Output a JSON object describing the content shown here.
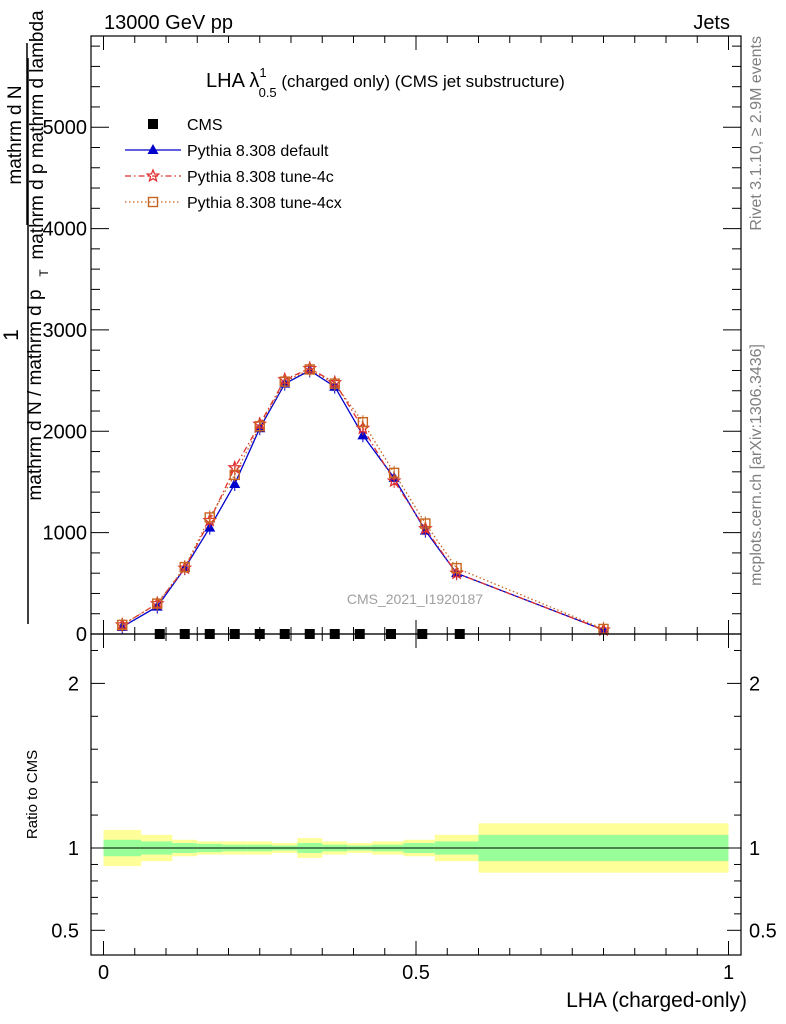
{
  "header": {
    "left": "13000 GeV pp",
    "right": "Jets"
  },
  "side_labels": {
    "rivet": "Rivet 3.1.10, ≥ 2.9M events",
    "mcplots": "mcplots.cern.ch [arXiv:1306.3436]"
  },
  "chart_data": [
    {
      "type": "line",
      "panel": "main",
      "title": {
        "prefix": "LHA λ",
        "superscript": "1",
        "subscript": "0.5",
        "suffix": " (charged only) (CMS jet substructure)"
      },
      "ylabel_lines": [
        "1",
        "mathrm d N / mathrm d p",
        "mathrm d N",
        "mathrm d p",
        "mathrm d lambda"
      ],
      "ylabel_sub": "T",
      "ylim": [
        0,
        5900
      ],
      "xlim": [
        -0.02,
        1.02
      ],
      "yticks": [
        0,
        1000,
        2000,
        3000,
        4000,
        5000
      ],
      "ytick_labels": [
        "0",
        "1000",
        "2000",
        "3000",
        "4000",
        "5000"
      ],
      "watermark": "CMS_2021_I1920187",
      "legend": {
        "placement": "top-left",
        "entries": [
          "CMS",
          "Pythia 8.308 default",
          "Pythia 8.308 tune-4c",
          "Pythia 8.308 tune-4cx"
        ]
      },
      "x": [
        0.03,
        0.086,
        0.13,
        0.17,
        0.21,
        0.25,
        0.29,
        0.33,
        0.37,
        0.415,
        0.465,
        0.515,
        0.565,
        0.8
      ],
      "series": [
        {
          "name": "CMS",
          "color": "#000000",
          "marker": "square",
          "x": [
            0.09,
            0.13,
            0.17,
            0.21,
            0.25,
            0.29,
            0.33,
            0.37,
            0.41,
            0.46,
            0.51,
            0.57
          ],
          "values": [
            0,
            0,
            0,
            0,
            0,
            0,
            0,
            0,
            0,
            0,
            0,
            0
          ]
        },
        {
          "name": "Pythia 8.308 default",
          "color": "#0000cc",
          "marker": "triangle",
          "line": "solid",
          "values": [
            70,
            270,
            650,
            1050,
            1480,
            2030,
            2470,
            2600,
            2440,
            1960,
            1540,
            1020,
            600,
            40
          ]
        },
        {
          "name": "Pythia 8.308 tune-4c",
          "color": "#e03030",
          "marker": "star",
          "line": "dashdot",
          "values": [
            90,
            300,
            650,
            1120,
            1640,
            2070,
            2510,
            2620,
            2480,
            2030,
            1510,
            1040,
            600,
            40
          ]
        },
        {
          "name": "Pythia 8.308 tune-4cx",
          "color": "#c86420",
          "marker": "open-square",
          "line": "dotted",
          "values": [
            90,
            300,
            660,
            1150,
            1570,
            2050,
            2490,
            2610,
            2470,
            2090,
            1590,
            1090,
            650,
            50
          ]
        }
      ]
    },
    {
      "type": "area",
      "panel": "ratio",
      "ylabel": "Ratio to CMS",
      "ylim": [
        0.35,
        2.3
      ],
      "yticks": [
        0.5,
        1,
        2
      ],
      "ytick_labels": [
        "0.5",
        "1",
        "2"
      ],
      "xlabel": "LHA (charged-only)",
      "xticks": [
        0,
        0.5,
        1
      ],
      "xtick_labels": [
        "0",
        "0.5",
        "1"
      ],
      "bin_edges": [
        0,
        0.06,
        0.11,
        0.15,
        0.19,
        0.23,
        0.27,
        0.31,
        0.35,
        0.39,
        0.43,
        0.48,
        0.53,
        0.6,
        1.0
      ],
      "band_inner": {
        "color": "#99ff99",
        "lower": [
          0.95,
          0.96,
          0.97,
          0.975,
          0.98,
          0.98,
          0.985,
          0.97,
          0.98,
          0.985,
          0.98,
          0.97,
          0.96,
          0.92
        ],
        "upper": [
          1.05,
          1.04,
          1.03,
          1.025,
          1.02,
          1.02,
          1.015,
          1.03,
          1.02,
          1.015,
          1.02,
          1.03,
          1.04,
          1.08
        ]
      },
      "band_outer": {
        "color": "#ffff99",
        "lower": [
          0.89,
          0.92,
          0.95,
          0.96,
          0.96,
          0.96,
          0.97,
          0.94,
          0.96,
          0.97,
          0.96,
          0.95,
          0.92,
          0.85
        ],
        "upper": [
          1.11,
          1.08,
          1.05,
          1.04,
          1.04,
          1.04,
          1.03,
          1.06,
          1.04,
          1.03,
          1.04,
          1.05,
          1.08,
          1.15
        ]
      },
      "reference_line": 1
    }
  ]
}
